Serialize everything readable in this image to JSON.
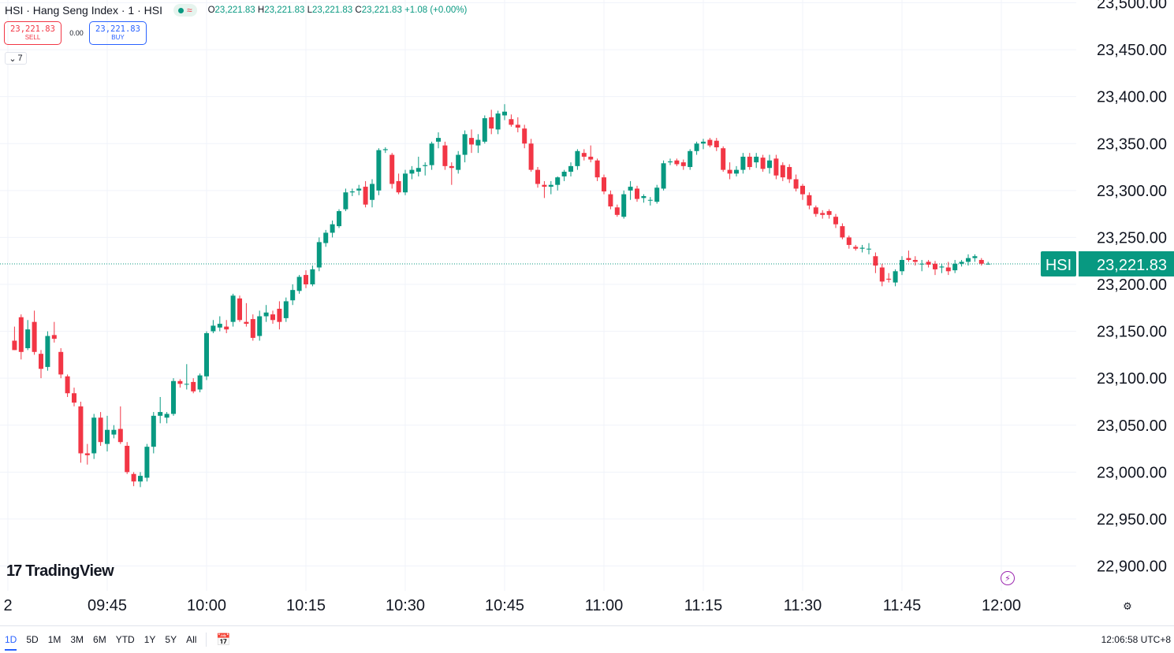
{
  "header": {
    "title": "HSI · Hang Seng Index · 1 · HSI",
    "wave_icon": "≈",
    "ohlc": {
      "o_key": "O",
      "o": "23,221.83",
      "h_key": "H",
      "h": "23,221.83",
      "l_key": "L",
      "l": "23,221.83",
      "c_key": "C",
      "c": "23,221.83",
      "change": "+1.08 (+0.00%)"
    }
  },
  "trade": {
    "sell_price": "23,221.83",
    "sell_label": "SELL",
    "spread": "0.00",
    "buy_price": "23,221.83",
    "buy_label": "BUY"
  },
  "indicators_toggle": {
    "icon": "chevron-down-icon",
    "count": "7"
  },
  "brand": {
    "name": "TradingView"
  },
  "colors": {
    "up": "#089981",
    "down": "#f23645",
    "accent": "#2962ff"
  },
  "chart_data": {
    "type": "candlestick",
    "symbol_label": "HSI",
    "last_price_label": "23,221.83",
    "last_price": 23221.83,
    "ylim": [
      22880,
      23510
    ],
    "y_ticks": [
      22900,
      22950,
      23000,
      23050,
      23100,
      23150,
      23200,
      23250,
      23300,
      23350,
      23400,
      23450,
      23500
    ],
    "y_tick_labels": [
      "22,900.00",
      "22,950.00",
      "23,000.00",
      "23,050.00",
      "23,100.00",
      "23,150.00",
      "23,200.00",
      "23,250.00",
      "23,300.00",
      "23,350.00",
      "23,400.00",
      "23,450.00",
      "23,500.00"
    ],
    "x_tick_labels": [
      "2",
      "09:45",
      "10:00",
      "10:15",
      "10:30",
      "10:45",
      "11:00",
      "11:15",
      "11:30",
      "11:45",
      "12:00"
    ],
    "x_tick_times": [
      "09:30",
      "09:45",
      "10:00",
      "10:15",
      "10:30",
      "10:45",
      "11:00",
      "11:15",
      "11:30",
      "11:45",
      "12:00"
    ],
    "grid": true,
    "candles": [
      [
        "09:31",
        23140,
        23155,
        23130,
        23130
      ],
      [
        "09:32",
        23165,
        23168,
        23120,
        23128
      ],
      [
        "09:33",
        23132,
        23162,
        23130,
        23152
      ],
      [
        "09:34",
        23160,
        23172,
        23125,
        23128
      ],
      [
        "09:35",
        23126,
        23130,
        23100,
        23110
      ],
      [
        "09:36",
        23112,
        23150,
        23108,
        23145
      ],
      [
        "09:37",
        23146,
        23160,
        23138,
        23142
      ],
      [
        "09:38",
        23128,
        23132,
        23100,
        23104
      ],
      [
        "09:39",
        23102,
        23104,
        23080,
        23084
      ],
      [
        "09:40",
        23084,
        23090,
        23070,
        23074
      ],
      [
        "09:41",
        23070,
        23075,
        23010,
        23020
      ],
      [
        "09:42",
        23020,
        23030,
        23008,
        23018
      ],
      [
        "09:43",
        23020,
        23062,
        23014,
        23058
      ],
      [
        "09:44",
        23058,
        23064,
        23028,
        23032
      ],
      [
        "09:45",
        23030,
        23060,
        23022,
        23045
      ],
      [
        "09:46",
        23040,
        23050,
        23036,
        23045
      ],
      [
        "09:47",
        23046,
        23070,
        23030,
        23032
      ],
      [
        "09:48",
        23028,
        23032,
        22998,
        23000
      ],
      [
        "09:49",
        22998,
        23000,
        22985,
        22990
      ],
      [
        "09:50",
        22990,
        23000,
        22984,
        22996
      ],
      [
        "09:51",
        22994,
        23030,
        22990,
        23027
      ],
      [
        "09:52",
        23027,
        23064,
        23020,
        23060
      ],
      [
        "09:53",
        23060,
        23080,
        23052,
        23064
      ],
      [
        "09:54",
        23058,
        23064,
        23052,
        23062
      ],
      [
        "09:55",
        23062,
        23100,
        23060,
        23097
      ],
      [
        "09:56",
        23097,
        23099,
        23090,
        23094
      ],
      [
        "09:57",
        23094,
        23115,
        23088,
        23094
      ],
      [
        "09:58",
        23096,
        23100,
        23084,
        23086
      ],
      [
        "09:59",
        23088,
        23105,
        23085,
        23103
      ],
      [
        "10:00",
        23102,
        23150,
        23098,
        23148
      ],
      [
        "10:01",
        23150,
        23162,
        23148,
        23156
      ],
      [
        "10:02",
        23154,
        23166,
        23150,
        23158
      ],
      [
        "10:03",
        23155,
        23162,
        23148,
        23152
      ],
      [
        "10:04",
        23160,
        23190,
        23155,
        23188
      ],
      [
        "10:05",
        23185,
        23188,
        23160,
        23162
      ],
      [
        "10:06",
        23160,
        23180,
        23155,
        23158
      ],
      [
        "10:07",
        23163,
        23168,
        23140,
        23143
      ],
      [
        "10:08",
        23145,
        23172,
        23140,
        23166
      ],
      [
        "10:09",
        23166,
        23178,
        23160,
        23170
      ],
      [
        "10:10",
        23168,
        23172,
        23158,
        23162
      ],
      [
        "10:11",
        23174,
        23182,
        23152,
        23160
      ],
      [
        "10:12",
        23164,
        23186,
        23160,
        23182
      ],
      [
        "10:13",
        23183,
        23200,
        23178,
        23194
      ],
      [
        "10:14",
        23193,
        23210,
        23190,
        23208
      ],
      [
        "10:15",
        23210,
        23215,
        23196,
        23200
      ],
      [
        "10:16",
        23200,
        23220,
        23198,
        23216
      ],
      [
        "10:17",
        23218,
        23250,
        23214,
        23245
      ],
      [
        "10:18",
        23244,
        23258,
        23240,
        23255
      ],
      [
        "10:19",
        23255,
        23268,
        23250,
        23264
      ],
      [
        "10:20",
        23262,
        23280,
        23260,
        23278
      ],
      [
        "10:21",
        23280,
        23302,
        23278,
        23298
      ],
      [
        "10:22",
        23298,
        23302,
        23294,
        23299
      ],
      [
        "10:23",
        23300,
        23306,
        23295,
        23302
      ],
      [
        "10:24",
        23304,
        23310,
        23282,
        23285
      ],
      [
        "10:25",
        23290,
        23312,
        23282,
        23307
      ],
      [
        "10:26",
        23300,
        23345,
        23295,
        23343
      ],
      [
        "10:27",
        23343,
        23346,
        23340,
        23344
      ],
      [
        "10:28",
        23338,
        23340,
        23302,
        23307
      ],
      [
        "10:29",
        23310,
        23318,
        23296,
        23298
      ],
      [
        "10:30",
        23298,
        23322,
        23295,
        23318
      ],
      [
        "10:31",
        23318,
        23326,
        23312,
        23322
      ],
      [
        "10:32",
        23320,
        23336,
        23315,
        23324
      ],
      [
        "10:33",
        23326,
        23330,
        23316,
        23327
      ],
      [
        "10:34",
        23327,
        23352,
        23322,
        23350
      ],
      [
        "10:35",
        23352,
        23362,
        23345,
        23356
      ],
      [
        "10:36",
        23348,
        23352,
        23322,
        23326
      ],
      [
        "10:37",
        23326,
        23330,
        23306,
        23324
      ],
      [
        "10:38",
        23322,
        23342,
        23318,
        23338
      ],
      [
        "10:39",
        23338,
        23364,
        23330,
        23360
      ],
      [
        "10:40",
        23356,
        23365,
        23340,
        23349
      ],
      [
        "10:41",
        23348,
        23360,
        23340,
        23354
      ],
      [
        "10:42",
        23352,
        23380,
        23350,
        23377
      ],
      [
        "10:43",
        23378,
        23386,
        23360,
        23366
      ],
      [
        "10:44",
        23365,
        23385,
        23360,
        23382
      ],
      [
        "10:45",
        23380,
        23392,
        23375,
        23384
      ],
      [
        "10:46",
        23376,
        23381,
        23368,
        23370
      ],
      [
        "10:47",
        23370,
        23378,
        23362,
        23367
      ],
      [
        "10:48",
        23366,
        23370,
        23345,
        23350
      ],
      [
        "10:49",
        23350,
        23355,
        23320,
        23322
      ],
      [
        "10:50",
        23322,
        23325,
        23303,
        23307
      ],
      [
        "10:51",
        23306,
        23310,
        23292,
        23304
      ],
      [
        "10:52",
        23304,
        23310,
        23296,
        23306
      ],
      [
        "10:53",
        23306,
        23315,
        23300,
        23314
      ],
      [
        "10:54",
        23315,
        23322,
        23310,
        23320
      ],
      [
        "10:55",
        23320,
        23330,
        23315,
        23326
      ],
      [
        "10:56",
        23326,
        23344,
        23322,
        23342
      ],
      [
        "10:57",
        23340,
        23344,
        23332,
        23336
      ],
      [
        "10:58",
        23336,
        23348,
        23330,
        23333
      ],
      [
        "10:59",
        23332,
        23334,
        23310,
        23314
      ],
      [
        "11:00",
        23314,
        23317,
        23296,
        23299
      ],
      [
        "11:01",
        23296,
        23300,
        23280,
        23283
      ],
      [
        "11:02",
        23282,
        23285,
        23272,
        23274
      ],
      [
        "11:03",
        23272,
        23300,
        23270,
        23296
      ],
      [
        "11:04",
        23300,
        23310,
        23290,
        23304
      ],
      [
        "11:05",
        23302,
        23305,
        23288,
        23291
      ],
      [
        "11:06",
        23292,
        23296,
        23287,
        23294
      ],
      [
        "11:07",
        23290,
        23293,
        23284,
        23290
      ],
      [
        "11:08",
        23288,
        23306,
        23286,
        23303
      ],
      [
        "11:09",
        23302,
        23332,
        23300,
        23329
      ],
      [
        "11:10",
        23330,
        23334,
        23327,
        23331
      ],
      [
        "11:11",
        23332,
        23334,
        23326,
        23328
      ],
      [
        "11:12",
        23330,
        23333,
        23322,
        23326
      ],
      [
        "11:13",
        23325,
        23344,
        23322,
        23342
      ],
      [
        "11:14",
        23342,
        23352,
        23338,
        23350
      ],
      [
        "11:15",
        23350,
        23355,
        23344,
        23352
      ],
      [
        "11:16",
        23354,
        23356,
        23346,
        23348
      ],
      [
        "11:17",
        23353,
        23356,
        23342,
        23346
      ],
      [
        "11:18",
        23345,
        23347,
        23320,
        23322
      ],
      [
        "11:19",
        23322,
        23330,
        23312,
        23318
      ],
      [
        "11:20",
        23318,
        23326,
        23315,
        23322
      ],
      [
        "11:21",
        23322,
        23340,
        23318,
        23336
      ],
      [
        "11:22",
        23336,
        23340,
        23322,
        23325
      ],
      [
        "11:23",
        23330,
        23340,
        23324,
        23336
      ],
      [
        "11:24",
        23335,
        23338,
        23320,
        23323
      ],
      [
        "11:25",
        23324,
        23338,
        23318,
        23332
      ],
      [
        "11:26",
        23334,
        23338,
        23312,
        23316
      ],
      [
        "11:27",
        23327,
        23330,
        23310,
        23314
      ],
      [
        "11:28",
        23325,
        23328,
        23308,
        23312
      ],
      [
        "11:29",
        23312,
        23317,
        23299,
        23302
      ],
      [
        "11:30",
        23305,
        23307,
        23290,
        23296
      ],
      [
        "11:31",
        23295,
        23298,
        23280,
        23284
      ],
      [
        "11:32",
        23282,
        23284,
        23272,
        23275
      ],
      [
        "11:33",
        23276,
        23279,
        23270,
        23274
      ],
      [
        "11:34",
        23278,
        23280,
        23270,
        23274
      ],
      [
        "11:35",
        23272,
        23275,
        23260,
        23264
      ],
      [
        "11:36",
        23262,
        23265,
        23248,
        23250
      ],
      [
        "11:37",
        23250,
        23252,
        23238,
        23242
      ],
      [
        "11:38",
        23240,
        23242,
        23236,
        23238
      ],
      [
        "11:39",
        23238,
        23242,
        23234,
        23239
      ],
      [
        "11:40",
        23238,
        23244,
        23232,
        23238
      ],
      [
        "11:41",
        23230,
        23234,
        23212,
        23220
      ],
      [
        "11:42",
        23218,
        23222,
        23198,
        23203
      ],
      [
        "11:43",
        23206,
        23212,
        23202,
        23205
      ],
      [
        "11:44",
        23202,
        23216,
        23198,
        23214
      ],
      [
        "11:45",
        23214,
        23230,
        23210,
        23226
      ],
      [
        "11:46",
        23228,
        23236,
        23224,
        23226
      ],
      [
        "11:47",
        23226,
        23230,
        23220,
        23224
      ],
      [
        "11:48",
        23222,
        23226,
        23214,
        23222
      ],
      [
        "11:49",
        23224,
        23226,
        23218,
        23221
      ],
      [
        "11:50",
        23222,
        23225,
        23210,
        23216
      ],
      [
        "11:51",
        23218,
        23222,
        23212,
        23219
      ],
      [
        "11:52",
        23218,
        23224,
        23210,
        23214
      ],
      [
        "11:53",
        23215,
        23226,
        23212,
        23222
      ],
      [
        "11:54",
        23222,
        23226,
        23219,
        23224
      ],
      [
        "11:55",
        23224,
        23232,
        23220,
        23228
      ],
      [
        "11:56",
        23228,
        23232,
        23224,
        23230
      ],
      [
        "11:57",
        23226,
        23228,
        23220,
        23222
      ],
      [
        "11:58",
        23222,
        23224,
        23221,
        23222
      ]
    ]
  },
  "bottom_bar": {
    "periods": [
      "1D",
      "5D",
      "1M",
      "3M",
      "6M",
      "YTD",
      "1Y",
      "5Y",
      "All"
    ],
    "active_period": "1D",
    "calendar_icon": "calendar-icon",
    "clock": "12:06:58 UTC+8"
  }
}
